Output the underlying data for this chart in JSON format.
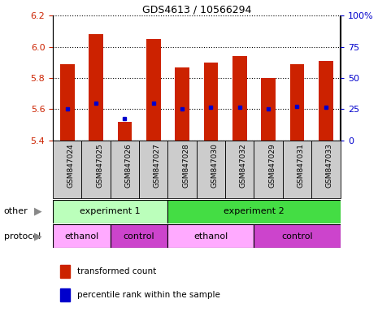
{
  "title": "GDS4613 / 10566294",
  "samples": [
    "GSM847024",
    "GSM847025",
    "GSM847026",
    "GSM847027",
    "GSM847028",
    "GSM847030",
    "GSM847032",
    "GSM847029",
    "GSM847031",
    "GSM847033"
  ],
  "bar_values": [
    5.89,
    6.08,
    5.52,
    6.05,
    5.87,
    5.9,
    5.94,
    5.8,
    5.89,
    5.91
  ],
  "bar_bottom": 5.4,
  "percentile_values": [
    5.6,
    5.64,
    5.54,
    5.64,
    5.6,
    5.61,
    5.61,
    5.6,
    5.62,
    5.61
  ],
  "ylim": [
    5.4,
    6.2
  ],
  "yticks_left": [
    5.4,
    5.6,
    5.8,
    6.0,
    6.2
  ],
  "yticks_right": [
    0,
    25,
    50,
    75,
    100
  ],
  "bar_color": "#cc2200",
  "percentile_color": "#0000cc",
  "other_row": [
    {
      "label": "experiment 1",
      "start": 0,
      "end": 4,
      "color": "#bbffbb"
    },
    {
      "label": "experiment 2",
      "start": 4,
      "end": 10,
      "color": "#44dd44"
    }
  ],
  "protocol_row": [
    {
      "label": "ethanol",
      "start": 0,
      "end": 2,
      "color": "#ffaaff"
    },
    {
      "label": "control",
      "start": 2,
      "end": 4,
      "color": "#cc44cc"
    },
    {
      "label": "ethanol",
      "start": 4,
      "end": 7,
      "color": "#ffaaff"
    },
    {
      "label": "control",
      "start": 7,
      "end": 10,
      "color": "#cc44cc"
    }
  ],
  "legend_items": [
    {
      "label": "transformed count",
      "color": "#cc2200"
    },
    {
      "label": "percentile rank within the sample",
      "color": "#0000cc"
    }
  ],
  "tick_label_color_left": "#cc2200",
  "tick_label_color_right": "#0000cc",
  "xticklabel_bg": "#cccccc",
  "row_label_color": "#888888"
}
